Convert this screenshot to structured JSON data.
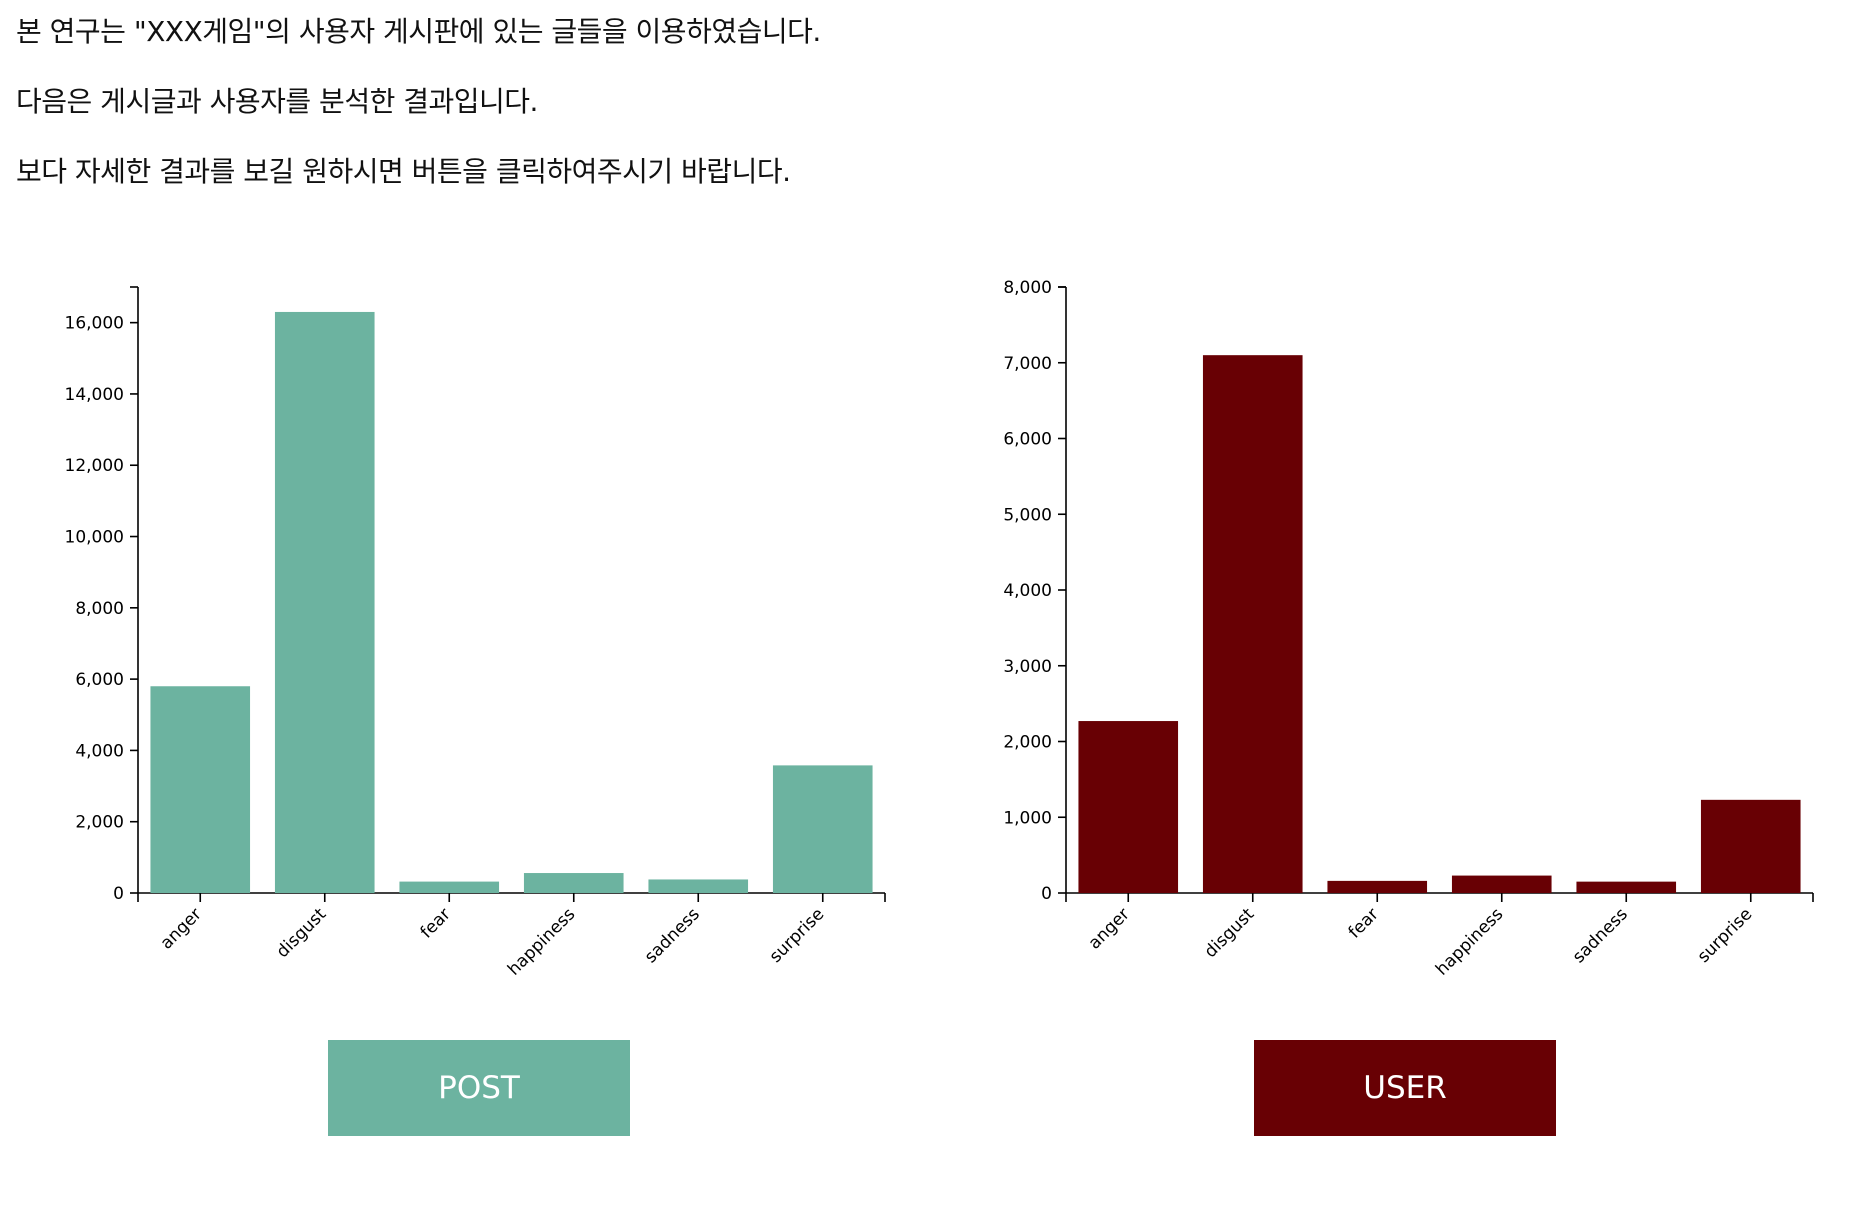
{
  "intro": {
    "line1": "본 연구는 \"XXX게임\"의 사용자 게시판에 있는 글들을 이용하였습니다.",
    "line2": "다음은 게시글과 사용자를 분석한 결과입니다.",
    "line3": "보다 자세한 결과를 보길 원하시면 버튼을 클릭하여주시기 바랍니다."
  },
  "colors": {
    "post": "#6cb3a0",
    "user": "#680004"
  },
  "buttons": {
    "post_label": "POST",
    "user_label": "USER"
  },
  "chart_data": [
    {
      "type": "bar",
      "categories": [
        "anger",
        "disgust",
        "fear",
        "happiness",
        "sadness",
        "surprise"
      ],
      "values": [
        5800,
        16300,
        320,
        560,
        380,
        3580
      ],
      "ylim": [
        0,
        17000
      ],
      "yticks": [
        0,
        2000,
        4000,
        6000,
        8000,
        10000,
        12000,
        14000,
        16000
      ],
      "title": "",
      "xlabel": "",
      "ylabel": "",
      "grid": false,
      "color": "#6cb3a0"
    },
    {
      "type": "bar",
      "categories": [
        "anger",
        "disgust",
        "fear",
        "happiness",
        "sadness",
        "surprise"
      ],
      "values": [
        2270,
        7100,
        160,
        230,
        150,
        1230
      ],
      "ylim": [
        0,
        8000
      ],
      "yticks": [
        0,
        1000,
        2000,
        3000,
        4000,
        5000,
        6000,
        7000,
        8000
      ],
      "title": "",
      "xlabel": "",
      "ylabel": "",
      "grid": false,
      "color": "#680004"
    }
  ]
}
